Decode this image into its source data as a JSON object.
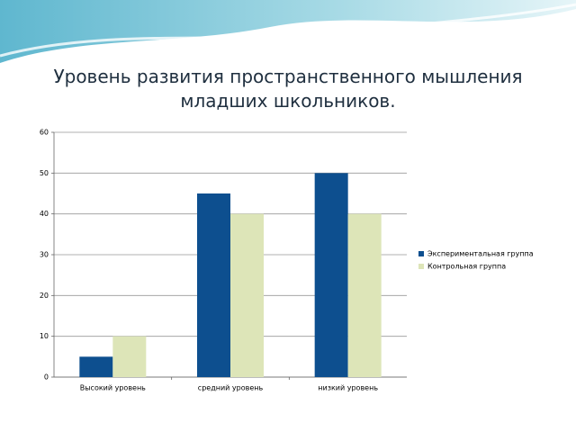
{
  "chart_data": {
    "type": "bar",
    "title": "Уровень развития пространственного мышления младших школьников.",
    "categories": [
      "Высокий уровень",
      "средний уровень",
      "низкий уровень"
    ],
    "series": [
      {
        "name": "Экспериментальная группа",
        "color": "#0d4f8f",
        "values": [
          5,
          45,
          50
        ]
      },
      {
        "name": "Контрольная группа",
        "color": "#dde5b8",
        "values": [
          10,
          40,
          40
        ]
      }
    ],
    "ylim": [
      0,
      60
    ],
    "yticks": [
      0,
      10,
      20,
      30,
      40,
      50,
      60
    ],
    "grid": true,
    "legend": "right"
  }
}
